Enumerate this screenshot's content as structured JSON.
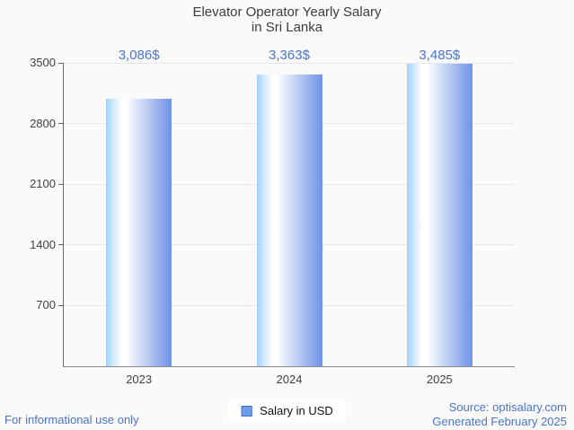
{
  "title": {
    "line1": "Elevator Operator Yearly Salary",
    "line2": "in Sri Lanka"
  },
  "chart_data": {
    "type": "bar",
    "title": "Elevator Operator Yearly Salary in Sri Lanka",
    "categories": [
      "2023",
      "2024",
      "2025"
    ],
    "values": [
      3086,
      3363,
      3485
    ],
    "value_labels": [
      "3,086$",
      "3,363$",
      "3,485$"
    ],
    "series_name": "Salary in USD",
    "xlabel": "",
    "ylabel": "",
    "ylim": [
      0,
      3500
    ],
    "yticks": [
      700,
      1400,
      2100,
      2800,
      3500
    ],
    "grid": true,
    "legend_position": "bottom",
    "colors": {
      "bar_gradient_left": "#a4d1fc",
      "bar_gradient_mid": "#ffffff",
      "bar_gradient_right": "#6e93e8",
      "value_label": "#4a74c9",
      "axis_text": "#414141",
      "gridline": "#e7e7e7",
      "background": "#fafafa"
    }
  },
  "legend": {
    "label": "Salary in USD"
  },
  "footer": {
    "disclaimer": "For informational use only",
    "source": "Source: optisalary.com",
    "generated": "Generated February 2025"
  }
}
